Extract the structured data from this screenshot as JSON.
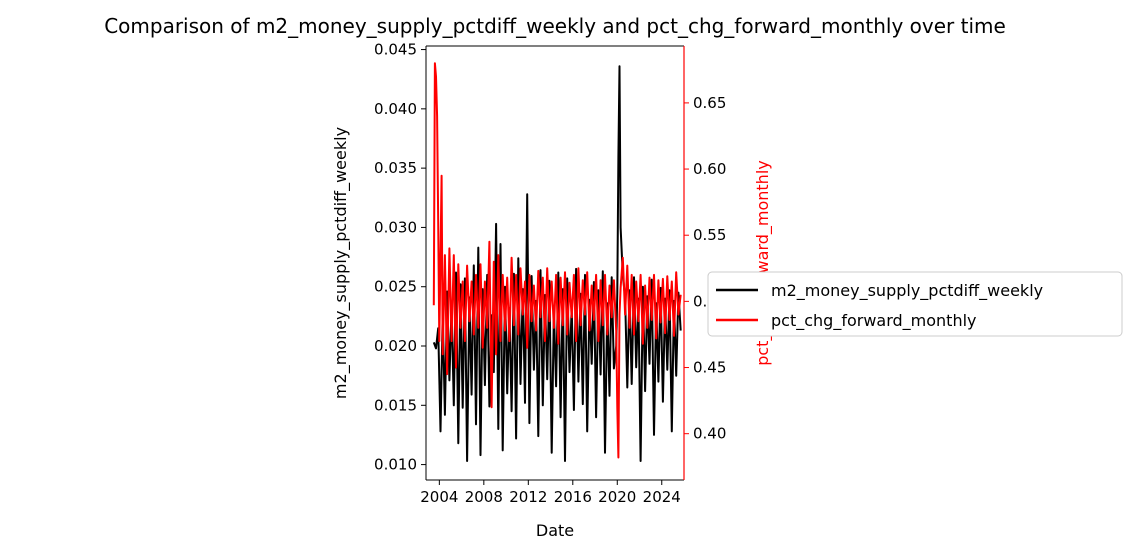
{
  "chart_data": {
    "type": "line",
    "title": "Comparison of m2_money_supply_pctdiff_weekly and pct_chg_forward_monthly over time",
    "xlabel": "Date",
    "ylabel_left": "m2_money_supply_pctdiff_weekly",
    "ylabel_right": "pct_chg_forward_monthly",
    "x_ticks": [
      "2004",
      "2008",
      "2012",
      "2016",
      "2020",
      "2024"
    ],
    "y_left_ticks": [
      "0.010",
      "0.015",
      "0.020",
      "0.025",
      "0.030",
      "0.035",
      "0.040",
      "0.045"
    ],
    "y_right_ticks": [
      "0.40",
      "0.45",
      "0.50",
      "0.55",
      "0.60",
      "0.65"
    ],
    "xlim": [
      2002.8,
      2026.0
    ],
    "ylim_left": [
      0.0087,
      0.0453
    ],
    "ylim_right": [
      0.365,
      0.693
    ],
    "grid": false,
    "legend_position": "right outside",
    "colors": {
      "left_series": "#000000",
      "right_series": "#ff0000"
    },
    "series": [
      {
        "name": "m2_money_supply_pctdiff_weekly",
        "axis": "left",
        "color": "#000000",
        "points": [
          [
            2003.5,
            0.0203
          ],
          [
            2003.7,
            0.0198
          ],
          [
            2003.9,
            0.0215
          ],
          [
            2004.1,
            0.0128
          ],
          [
            2004.3,
            0.0228
          ],
          [
            2004.5,
            0.0142
          ],
          [
            2004.7,
            0.0246
          ],
          [
            2004.9,
            0.0171
          ],
          [
            2005.1,
            0.0235
          ],
          [
            2005.3,
            0.015
          ],
          [
            2005.5,
            0.0262
          ],
          [
            2005.7,
            0.0118
          ],
          [
            2005.9,
            0.0252
          ],
          [
            2006.1,
            0.0148
          ],
          [
            2006.3,
            0.0257
          ],
          [
            2006.5,
            0.0103
          ],
          [
            2006.7,
            0.0241
          ],
          [
            2006.9,
            0.0159
          ],
          [
            2007.1,
            0.0268
          ],
          [
            2007.3,
            0.0134
          ],
          [
            2007.5,
            0.0283
          ],
          [
            2007.7,
            0.0108
          ],
          [
            2007.9,
            0.0248
          ],
          [
            2008.1,
            0.0167
          ],
          [
            2008.3,
            0.026
          ],
          [
            2008.5,
            0.0149
          ],
          [
            2008.7,
            0.0226
          ],
          [
            2008.9,
            0.0178
          ],
          [
            2009.1,
            0.0303
          ],
          [
            2009.3,
            0.013
          ],
          [
            2009.5,
            0.0286
          ],
          [
            2009.7,
            0.0112
          ],
          [
            2009.9,
            0.025
          ],
          [
            2010.1,
            0.016
          ],
          [
            2010.3,
            0.0232
          ],
          [
            2010.5,
            0.0145
          ],
          [
            2010.7,
            0.0261
          ],
          [
            2010.9,
            0.0122
          ],
          [
            2011.1,
            0.0274
          ],
          [
            2011.3,
            0.0168
          ],
          [
            2011.5,
            0.0248
          ],
          [
            2011.7,
            0.0152
          ],
          [
            2011.9,
            0.0328
          ],
          [
            2012.1,
            0.0135
          ],
          [
            2012.3,
            0.0259
          ],
          [
            2012.5,
            0.018
          ],
          [
            2012.7,
            0.0238
          ],
          [
            2012.9,
            0.0124
          ],
          [
            2013.1,
            0.0264
          ],
          [
            2013.3,
            0.015
          ],
          [
            2013.5,
            0.0243
          ],
          [
            2013.7,
            0.0172
          ],
          [
            2013.9,
            0.0255
          ],
          [
            2014.1,
            0.011
          ],
          [
            2014.3,
            0.023
          ],
          [
            2014.5,
            0.0166
          ],
          [
            2014.7,
            0.0262
          ],
          [
            2014.9,
            0.014
          ],
          [
            2015.1,
            0.0248
          ],
          [
            2015.3,
            0.0103
          ],
          [
            2015.5,
            0.0257
          ],
          [
            2015.7,
            0.0178
          ],
          [
            2015.9,
            0.0233
          ],
          [
            2016.1,
            0.0146
          ],
          [
            2016.3,
            0.0265
          ],
          [
            2016.5,
            0.017
          ],
          [
            2016.7,
            0.0244
          ],
          [
            2016.9,
            0.0151
          ],
          [
            2017.1,
            0.026
          ],
          [
            2017.3,
            0.0128
          ],
          [
            2017.5,
            0.0239
          ],
          [
            2017.7,
            0.0185
          ],
          [
            2017.9,
            0.0254
          ],
          [
            2018.1,
            0.014
          ],
          [
            2018.3,
            0.0247
          ],
          [
            2018.5,
            0.0176
          ],
          [
            2018.7,
            0.0263
          ],
          [
            2018.9,
            0.011
          ],
          [
            2019.1,
            0.0236
          ],
          [
            2019.3,
            0.0158
          ],
          [
            2019.5,
            0.0258
          ],
          [
            2019.7,
            0.0181
          ],
          [
            2019.9,
            0.02
          ],
          [
            2020.0,
            0.0245
          ],
          [
            2020.1,
            0.036
          ],
          [
            2020.2,
            0.0436
          ],
          [
            2020.3,
            0.03
          ],
          [
            2020.5,
            0.026
          ],
          [
            2020.7,
            0.0241
          ],
          [
            2020.9,
            0.0165
          ],
          [
            2021.1,
            0.0247
          ],
          [
            2021.3,
            0.0168
          ],
          [
            2021.5,
            0.0258
          ],
          [
            2021.7,
            0.0182
          ],
          [
            2021.9,
            0.024
          ],
          [
            2022.1,
            0.0103
          ],
          [
            2022.3,
            0.025
          ],
          [
            2022.5,
            0.0162
          ],
          [
            2022.7,
            0.0242
          ],
          [
            2022.9,
            0.0185
          ],
          [
            2023.1,
            0.0256
          ],
          [
            2023.3,
            0.0125
          ],
          [
            2023.5,
            0.0236
          ],
          [
            2023.7,
            0.017
          ],
          [
            2023.9,
            0.0249
          ],
          [
            2024.1,
            0.0153
          ],
          [
            2024.3,
            0.024
          ],
          [
            2024.5,
            0.018
          ],
          [
            2024.7,
            0.0247
          ],
          [
            2024.9,
            0.0128
          ],
          [
            2025.1,
            0.0238
          ],
          [
            2025.3,
            0.0175
          ],
          [
            2025.5,
            0.0245
          ],
          [
            2025.7,
            0.0213
          ]
        ]
      },
      {
        "name": "pct_chg_forward_monthly",
        "axis": "right",
        "color": "#ff0000",
        "points": [
          [
            2003.5,
            0.497
          ],
          [
            2003.6,
            0.68
          ],
          [
            2003.7,
            0.67
          ],
          [
            2003.8,
            0.64
          ],
          [
            2003.9,
            0.56
          ],
          [
            2004.0,
            0.47
          ],
          [
            2004.2,
            0.595
          ],
          [
            2004.3,
            0.46
          ],
          [
            2004.5,
            0.535
          ],
          [
            2004.7,
            0.445
          ],
          [
            2004.9,
            0.54
          ],
          [
            2005.1,
            0.47
          ],
          [
            2005.3,
            0.535
          ],
          [
            2005.5,
            0.45
          ],
          [
            2005.7,
            0.528
          ],
          [
            2005.9,
            0.48
          ],
          [
            2006.1,
            0.515
          ],
          [
            2006.3,
            0.47
          ],
          [
            2006.5,
            0.527
          ],
          [
            2006.7,
            0.485
          ],
          [
            2006.9,
            0.515
          ],
          [
            2007.1,
            0.475
          ],
          [
            2007.3,
            0.52
          ],
          [
            2007.5,
            0.48
          ],
          [
            2007.7,
            0.528
          ],
          [
            2007.9,
            0.465
          ],
          [
            2008.1,
            0.515
          ],
          [
            2008.3,
            0.48
          ],
          [
            2008.5,
            0.545
          ],
          [
            2008.7,
            0.42
          ],
          [
            2008.9,
            0.53
          ],
          [
            2009.1,
            0.46
          ],
          [
            2009.3,
            0.535
          ],
          [
            2009.5,
            0.47
          ],
          [
            2009.7,
            0.52
          ],
          [
            2009.9,
            0.478
          ],
          [
            2010.1,
            0.518
          ],
          [
            2010.3,
            0.47
          ],
          [
            2010.5,
            0.533
          ],
          [
            2010.7,
            0.482
          ],
          [
            2010.9,
            0.52
          ],
          [
            2011.1,
            0.475
          ],
          [
            2011.3,
            0.525
          ],
          [
            2011.5,
            0.49
          ],
          [
            2011.7,
            0.515
          ],
          [
            2011.9,
            0.465
          ],
          [
            2012.1,
            0.52
          ],
          [
            2012.3,
            0.485
          ],
          [
            2012.5,
            0.512
          ],
          [
            2012.7,
            0.478
          ],
          [
            2012.9,
            0.523
          ],
          [
            2013.1,
            0.488
          ],
          [
            2013.3,
            0.518
          ],
          [
            2013.5,
            0.47
          ],
          [
            2013.7,
            0.525
          ],
          [
            2013.9,
            0.485
          ],
          [
            2014.1,
            0.515
          ],
          [
            2014.3,
            0.48
          ],
          [
            2014.5,
            0.52
          ],
          [
            2014.7,
            0.468
          ],
          [
            2014.9,
            0.518
          ],
          [
            2015.1,
            0.482
          ],
          [
            2015.3,
            0.522
          ],
          [
            2015.5,
            0.475
          ],
          [
            2015.7,
            0.514
          ],
          [
            2015.9,
            0.488
          ],
          [
            2016.1,
            0.52
          ],
          [
            2016.3,
            0.47
          ],
          [
            2016.5,
            0.525
          ],
          [
            2016.7,
            0.482
          ],
          [
            2016.9,
            0.516
          ],
          [
            2017.1,
            0.49
          ],
          [
            2017.3,
            0.522
          ],
          [
            2017.5,
            0.478
          ],
          [
            2017.7,
            0.512
          ],
          [
            2017.9,
            0.486
          ],
          [
            2018.1,
            0.52
          ],
          [
            2018.3,
            0.47
          ],
          [
            2018.5,
            0.516
          ],
          [
            2018.7,
            0.482
          ],
          [
            2018.9,
            0.52
          ],
          [
            2019.1,
            0.475
          ],
          [
            2019.3,
            0.512
          ],
          [
            2019.5,
            0.488
          ],
          [
            2019.7,
            0.516
          ],
          [
            2019.9,
            0.478
          ],
          [
            2020.0,
            0.42
          ],
          [
            2020.1,
            0.382
          ],
          [
            2020.2,
            0.49
          ],
          [
            2020.3,
            0.51
          ],
          [
            2020.5,
            0.533
          ],
          [
            2020.7,
            0.49
          ],
          [
            2020.9,
            0.527
          ],
          [
            2021.1,
            0.48
          ],
          [
            2021.3,
            0.52
          ],
          [
            2021.5,
            0.475
          ],
          [
            2021.7,
            0.515
          ],
          [
            2021.9,
            0.485
          ],
          [
            2022.1,
            0.52
          ],
          [
            2022.3,
            0.468
          ],
          [
            2022.5,
            0.512
          ],
          [
            2022.7,
            0.48
          ],
          [
            2022.9,
            0.518
          ],
          [
            2023.1,
            0.486
          ],
          [
            2023.3,
            0.52
          ],
          [
            2023.5,
            0.472
          ],
          [
            2023.7,
            0.516
          ],
          [
            2023.9,
            0.484
          ],
          [
            2024.1,
            0.517
          ],
          [
            2024.3,
            0.476
          ],
          [
            2024.5,
            0.519
          ],
          [
            2024.7,
            0.486
          ],
          [
            2024.9,
            0.515
          ],
          [
            2025.1,
            0.474
          ],
          [
            2025.3,
            0.522
          ],
          [
            2025.5,
            0.49
          ],
          [
            2025.7,
            0.505
          ]
        ]
      }
    ]
  }
}
